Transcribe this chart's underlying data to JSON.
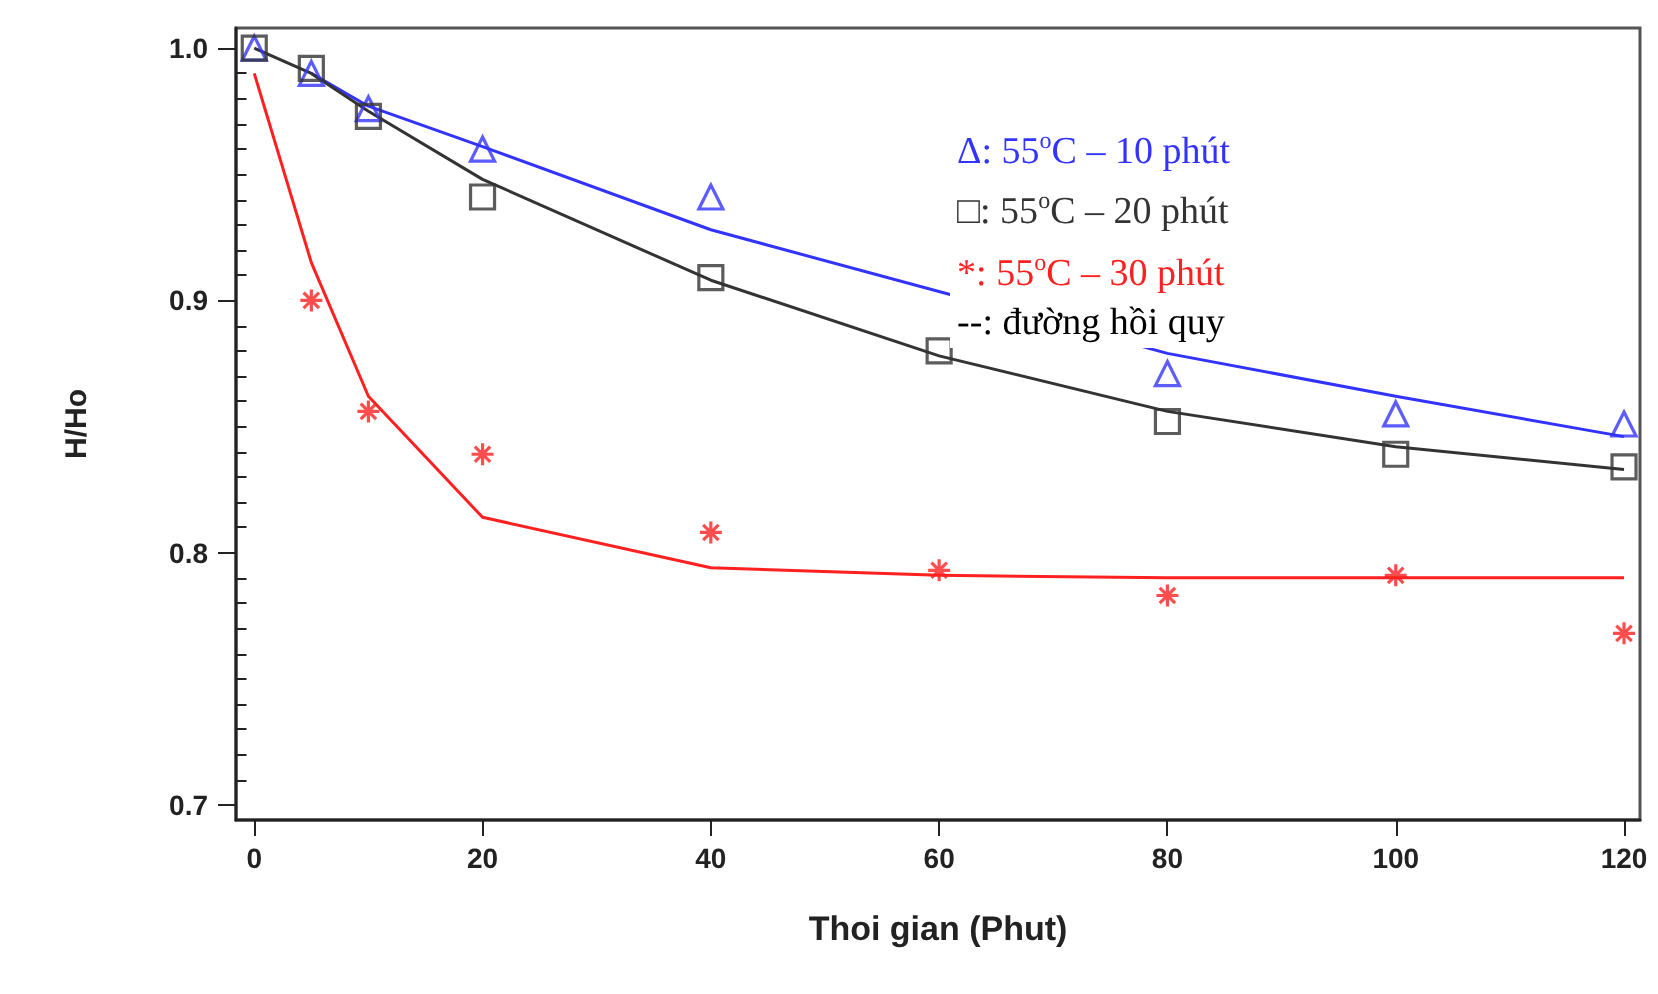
{
  "chart_data": {
    "type": "scatter",
    "xlabel": "Thoi gian (Phut)",
    "ylabel": "H/Ho",
    "xlim": [
      -1.6,
      121.4
    ],
    "xticks": [
      0,
      20,
      40,
      60,
      80,
      100,
      120
    ],
    "ylim": [
      0.694,
      1.008
    ],
    "yticks": [
      {
        "value": 0.7,
        "label": "0.7"
      },
      {
        "value": 0.8,
        "label": "0.8"
      },
      {
        "value": 0.9,
        "label": "0.9"
      },
      {
        "value": 1.0,
        "label": "1.0"
      }
    ],
    "legend": "top right",
    "grid": false,
    "annotations": [
      "--: đường hồi quy"
    ],
    "series": [
      {
        "name": "Δ: 55$^{o}$C – 10 phút",
        "color": "#3333ff",
        "marker": "triangle",
        "x": [
          0,
          5,
          10,
          20,
          40,
          80,
          100,
          120
        ],
        "values": [
          1.0,
          0.99,
          0.976,
          0.96,
          0.941,
          0.871,
          0.855,
          0.851
        ]
      },
      {
        "name": "□: 55$^{o}$C – 20 phút",
        "color": "#333333",
        "marker": "square",
        "x": [
          0,
          5,
          10,
          20,
          40,
          60,
          80,
          100,
          120
        ],
        "values": [
          1.0,
          0.992,
          0.973,
          0.941,
          0.909,
          0.88,
          0.852,
          0.839,
          0.834
        ]
      },
      {
        "name": "*: 55$^{o}$C – 30 phút",
        "color": "#ff2020",
        "marker": "cross",
        "x": [
          5,
          10,
          20,
          40,
          60,
          80,
          100,
          120
        ],
        "values": [
          0.9,
          0.856,
          0.839,
          0.808,
          0.793,
          0.783,
          0.791,
          0.768
        ]
      },
      {
        "type": "line",
        "color": "#3333ff",
        "marker": "none",
        "x": [
          5,
          10,
          20,
          40,
          80,
          100,
          120
        ],
        "values": [
          0.99,
          0.977,
          0.961,
          0.928,
          0.879,
          0.862,
          0.846
        ]
      },
      {
        "type": "line",
        "color": "#333333",
        "marker": "none",
        "x": [
          0,
          5,
          10,
          20,
          40,
          60,
          80,
          100,
          120
        ],
        "values": [
          1.0,
          0.99,
          0.975,
          0.948,
          0.908,
          0.878,
          0.856,
          0.842,
          0.833
        ]
      },
      {
        "type": "line",
        "color": "#ff2020",
        "marker": "none",
        "x": [
          0,
          5,
          10,
          20,
          40,
          60,
          80,
          100,
          120
        ],
        "values": [
          0.99,
          0.915,
          0.862,
          0.814,
          0.794,
          0.791,
          0.79,
          0.79,
          0.79
        ]
      }
    ]
  }
}
